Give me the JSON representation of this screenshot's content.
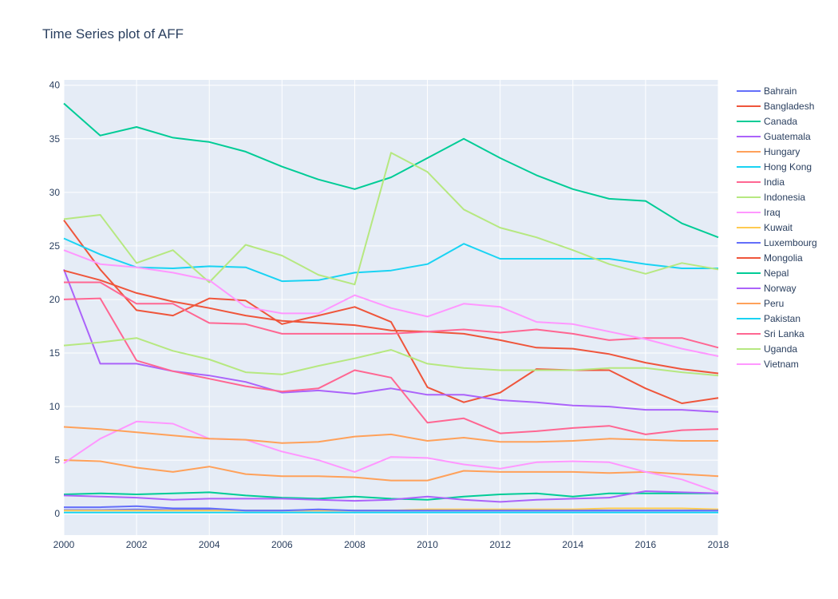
{
  "chart_data": {
    "type": "line",
    "title": "Time Series plot of AFF",
    "xlabel": "",
    "ylabel": "",
    "xlim": [
      2000,
      2018
    ],
    "ylim": [
      -2,
      40.5
    ],
    "x_ticks": [
      2000,
      2002,
      2004,
      2006,
      2008,
      2010,
      2012,
      2014,
      2016,
      2018
    ],
    "y_ticks": [
      0,
      5,
      10,
      15,
      20,
      25,
      30,
      35,
      40
    ],
    "grid": true,
    "legend_position": "right",
    "background": "#e5ecf6",
    "x": [
      2000,
      2001,
      2002,
      2003,
      2004,
      2005,
      2006,
      2007,
      2008,
      2009,
      2010,
      2011,
      2012,
      2013,
      2014,
      2015,
      2016,
      2017,
      2018
    ],
    "series": [
      {
        "name": "Bahrain",
        "color": "#636efa",
        "values": [
          0.35,
          0.35,
          0.4,
          0.35,
          0.35,
          0.3,
          0.3,
          0.3,
          0.3,
          0.3,
          0.3,
          0.3,
          0.3,
          0.3,
          0.3,
          0.3,
          0.3,
          0.3,
          0.3
        ]
      },
      {
        "name": "Bangladesh",
        "color": "#ef553b",
        "values": [
          27.4,
          22.8,
          19.0,
          18.5,
          20.1,
          19.9,
          17.7,
          18.5,
          19.3,
          17.9,
          11.8,
          10.4,
          11.3,
          13.5,
          13.4,
          13.4,
          11.7,
          10.3,
          10.8
        ]
      },
      {
        "name": "Canada",
        "color": "#00cc96",
        "values": [
          1.8,
          1.9,
          1.8,
          1.9,
          2.0,
          1.7,
          1.5,
          1.4,
          1.6,
          1.4,
          1.3,
          1.6,
          1.8,
          1.9,
          1.6,
          1.9,
          1.9,
          1.9,
          1.9
        ]
      },
      {
        "name": "Guatemala",
        "color": "#ab63fa",
        "values": [
          22.8,
          14.0,
          14.0,
          13.3,
          12.9,
          12.3,
          11.3,
          11.5,
          11.2,
          11.7,
          11.1,
          11.1,
          10.6,
          10.4,
          10.1,
          10.0,
          9.7,
          9.7,
          9.5
        ]
      },
      {
        "name": "Hungary",
        "color": "#ffa15a",
        "values": [
          5.0,
          4.9,
          4.3,
          3.9,
          4.4,
          3.7,
          3.5,
          3.5,
          3.4,
          3.1,
          3.1,
          4.0,
          3.9,
          3.9,
          3.9,
          3.8,
          3.9,
          3.7,
          3.5
        ]
      },
      {
        "name": "Hong Kong",
        "color": "#19d3f3",
        "values": [
          0.1,
          0.1,
          0.1,
          0.1,
          0.1,
          0.1,
          0.1,
          0.1,
          0.1,
          0.1,
          0.1,
          0.1,
          0.1,
          0.1,
          0.1,
          0.1,
          0.1,
          0.1,
          0.1
        ]
      },
      {
        "name": "India",
        "color": "#ff6692",
        "values": [
          20.0,
          20.1,
          14.3,
          13.3,
          12.6,
          11.9,
          11.4,
          11.7,
          13.4,
          12.7,
          8.5,
          8.9,
          7.5,
          7.7,
          8.0,
          8.2,
          7.4,
          7.8,
          7.9
        ]
      },
      {
        "name": "Indonesia",
        "color": "#b6e880",
        "values": [
          15.7,
          16.0,
          16.4,
          15.2,
          14.4,
          13.2,
          13.0,
          13.8,
          14.5,
          15.3,
          14.0,
          13.6,
          13.4,
          13.4,
          13.4,
          13.6,
          13.6,
          13.2,
          12.9
        ]
      },
      {
        "name": "Iraq",
        "color": "#ff97ff",
        "values": [
          4.7,
          7.0,
          8.6,
          8.4,
          7.0,
          6.9,
          5.8,
          5.0,
          3.9,
          5.3,
          5.2,
          4.6,
          4.2,
          4.8,
          4.9,
          4.8,
          3.9,
          3.2,
          2.0
        ]
      },
      {
        "name": "Kuwait",
        "color": "#fecb52",
        "values": [
          0.3,
          0.3,
          0.3,
          0.3,
          0.3,
          0.3,
          0.3,
          0.3,
          0.3,
          0.3,
          0.4,
          0.4,
          0.4,
          0.4,
          0.4,
          0.5,
          0.5,
          0.5,
          0.4
        ]
      },
      {
        "name": "Luxembourg",
        "color": "#636efa",
        "values": [
          0.6,
          0.6,
          0.7,
          0.5,
          0.5,
          0.3,
          0.3,
          0.4,
          0.3,
          0.3,
          0.3,
          0.3,
          0.3,
          0.3,
          0.3,
          0.3,
          0.3,
          0.3,
          0.3
        ]
      },
      {
        "name": "Mongolia",
        "color": "#ef553b",
        "values": [
          22.7,
          21.8,
          20.6,
          19.8,
          19.2,
          18.5,
          18.0,
          17.8,
          17.6,
          17.1,
          17.0,
          16.8,
          16.2,
          15.5,
          15.4,
          14.9,
          14.1,
          13.5,
          13.1
        ]
      },
      {
        "name": "Nepal",
        "color": "#00cc96",
        "values": [
          38.3,
          35.3,
          36.1,
          35.1,
          34.7,
          33.8,
          32.4,
          31.2,
          30.3,
          31.4,
          33.2,
          35.0,
          33.2,
          31.6,
          30.3,
          29.4,
          29.2,
          27.1,
          25.8
        ]
      },
      {
        "name": "Norway",
        "color": "#ab63fa",
        "values": [
          1.7,
          1.6,
          1.5,
          1.3,
          1.4,
          1.4,
          1.4,
          1.3,
          1.2,
          1.3,
          1.6,
          1.3,
          1.1,
          1.3,
          1.4,
          1.5,
          2.1,
          2.0,
          1.9
        ]
      },
      {
        "name": "Peru",
        "color": "#ffa15a",
        "values": [
          8.1,
          7.9,
          7.6,
          7.3,
          7.0,
          6.9,
          6.6,
          6.7,
          7.2,
          7.4,
          6.8,
          7.1,
          6.7,
          6.7,
          6.8,
          7.0,
          6.9,
          6.8,
          6.8
        ]
      },
      {
        "name": "Pakistan",
        "color": "#19d3f3",
        "values": [
          25.7,
          24.2,
          23.0,
          22.9,
          23.1,
          23.0,
          21.7,
          21.8,
          22.5,
          22.7,
          23.3,
          25.2,
          23.8,
          23.8,
          23.8,
          23.8,
          23.3,
          22.9,
          22.9
        ]
      },
      {
        "name": "Sri Lanka",
        "color": "#ff6692",
        "values": [
          21.6,
          21.6,
          19.6,
          19.6,
          17.8,
          17.7,
          16.8,
          16.8,
          16.8,
          16.8,
          17.0,
          17.2,
          16.9,
          17.2,
          16.8,
          16.2,
          16.4,
          16.4,
          15.5
        ]
      },
      {
        "name": "Uganda",
        "color": "#b6e880",
        "values": [
          27.5,
          27.9,
          23.4,
          24.6,
          21.6,
          25.1,
          24.1,
          22.3,
          21.4,
          33.7,
          31.9,
          28.4,
          26.7,
          25.8,
          24.6,
          23.3,
          22.4,
          23.4,
          22.8
        ]
      },
      {
        "name": "Vietnam",
        "color": "#ff97ff",
        "values": [
          24.6,
          23.3,
          23.0,
          22.5,
          21.8,
          19.3,
          18.7,
          18.7,
          20.4,
          19.2,
          18.4,
          19.6,
          19.3,
          17.9,
          17.7,
          17.0,
          16.3,
          15.4,
          14.7
        ]
      }
    ]
  }
}
